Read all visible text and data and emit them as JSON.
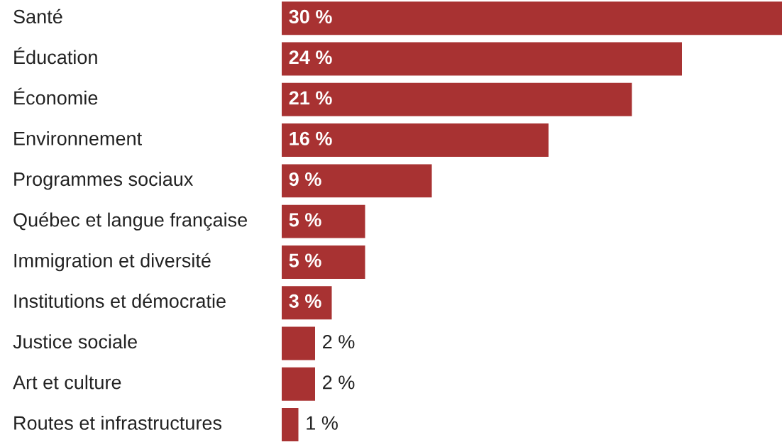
{
  "chart_data": {
    "type": "bar",
    "orientation": "horizontal",
    "categories": [
      "Santé",
      "Éducation",
      "Économie",
      "Environnement",
      "Programmes sociaux",
      "Québec et langue française",
      "Immigration et diversité",
      "Institutions et démocratie",
      "Justice sociale",
      "Art et culture",
      "Routes et infrastructures"
    ],
    "values": [
      30,
      24,
      21,
      16,
      9,
      5,
      5,
      3,
      2,
      2,
      1
    ],
    "value_labels": [
      "30 %",
      "24 %",
      "21 %",
      "16 %",
      "9 %",
      "5 %",
      "5 %",
      "3 %",
      "2 %",
      "2 %",
      "1 %"
    ],
    "color": "#a83232"
  }
}
